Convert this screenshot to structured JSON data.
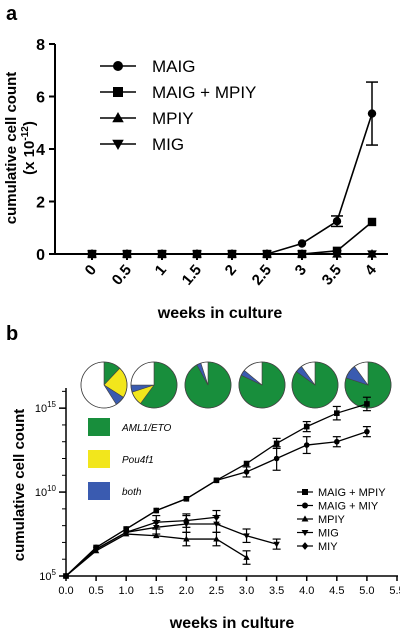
{
  "chart_data": [
    {
      "panel_label": "a",
      "type": "line",
      "xlabel": "weeks in culture",
      "ylabel_line1": "cumulative cell count",
      "ylabel_line2_prefix": "(x 10",
      "ylabel_line2_exp": "-12",
      "ylabel_line2_suffix": ")",
      "categories": [
        "0",
        "0.5",
        "1",
        "1.5",
        "2",
        "2.5",
        "3",
        "3.5",
        "4"
      ],
      "ylim": [
        0,
        8
      ],
      "yticks": [
        0,
        2,
        4,
        6,
        8
      ],
      "legend_position": "top-left",
      "series": [
        {
          "name": "MAIG",
          "marker": "circle",
          "values": [
            0,
            0,
            0,
            0,
            0,
            0,
            0.4,
            1.25,
            5.35
          ],
          "error": [
            0,
            0,
            0,
            0,
            0,
            0,
            0,
            0.2,
            1.2
          ]
        },
        {
          "name": "MAIG + MPIY",
          "marker": "square",
          "values": [
            0,
            0,
            0,
            0,
            0,
            0,
            0,
            0.12,
            1.22
          ],
          "error": [
            0,
            0,
            0,
            0,
            0,
            0,
            0,
            0,
            0
          ]
        },
        {
          "name": "MPIY",
          "marker": "triangle-up",
          "values": [
            0,
            0,
            0,
            0,
            0,
            0,
            0,
            0,
            0
          ],
          "error": [
            0,
            0,
            0,
            0,
            0,
            0,
            0,
            0,
            0
          ]
        },
        {
          "name": "MIG",
          "marker": "triangle-down",
          "values": [
            0,
            0,
            0,
            0,
            0,
            0,
            0,
            0,
            0
          ],
          "error": [
            0,
            0,
            0,
            0,
            0,
            0,
            0,
            0,
            0
          ]
        }
      ]
    },
    {
      "panel_label": "b",
      "type": "line",
      "xlabel": "weeks in culture",
      "ylabel": "cumulative cell count",
      "yscale": "log",
      "xlim": [
        0,
        5.5
      ],
      "xticks": [
        "0.0",
        "0.5",
        "1.0",
        "1.5",
        "2.0",
        "2.5",
        "3.0",
        "3.5",
        "4.0",
        "4.5",
        "5.0",
        "5.5"
      ],
      "ylim_log10": [
        5,
        16.2
      ],
      "yticks": [
        {
          "base": "10",
          "exp": "5",
          "log10": 5
        },
        {
          "base": "10",
          "exp": "10",
          "log10": 10
        },
        {
          "base": "10",
          "exp": "15",
          "log10": 15
        }
      ],
      "legend_position": "bottom-right",
      "series": [
        {
          "name": "MAIG + MPIY",
          "marker": "square",
          "x": [
            0,
            0.5,
            1.0,
            1.5,
            2.0,
            2.5,
            3.0,
            3.5,
            4.0,
            4.5,
            5.0
          ],
          "log10": [
            5.0,
            6.7,
            7.8,
            8.9,
            9.6,
            10.7,
            11.7,
            12.9,
            13.9,
            14.7,
            15.25
          ],
          "log10_error": [
            0,
            0,
            0,
            0,
            0,
            0,
            0,
            0.3,
            0.3,
            0.4,
            0.4
          ]
        },
        {
          "name": "MAIG + MIY",
          "marker": "circle",
          "x": [
            0,
            0.5,
            1.0,
            1.5,
            2.0,
            2.5,
            3.0,
            3.5,
            4.0,
            4.5,
            5.0
          ],
          "log10": [
            5.0,
            6.7,
            7.8,
            8.9,
            9.6,
            10.7,
            11.2,
            12.0,
            12.8,
            13.0,
            13.6
          ],
          "log10_error": [
            0,
            0,
            0,
            0,
            0,
            0,
            0.3,
            0.7,
            0.5,
            0.3,
            0.3
          ]
        },
        {
          "name": "MPIY",
          "marker": "triangle-up",
          "x": [
            0,
            0.5,
            1.0,
            1.5,
            2.0,
            2.5,
            3.0
          ],
          "log10": [
            5.0,
            6.5,
            7.5,
            7.4,
            7.2,
            7.2,
            6.1
          ],
          "log10_error": [
            0,
            0,
            0,
            0,
            0.4,
            0.4,
            0.4
          ]
        },
        {
          "name": "MIG",
          "marker": "triangle-down",
          "x": [
            0,
            0.5,
            1.0,
            1.5,
            2.0,
            2.5,
            3.0,
            3.5
          ],
          "log10": [
            5.0,
            6.6,
            7.6,
            7.9,
            8.1,
            8.1,
            7.4,
            6.9
          ],
          "log10_error": [
            0,
            0,
            0,
            0.4,
            0.5,
            0.5,
            0.4,
            0.3
          ]
        },
        {
          "name": "MIY",
          "marker": "diamond",
          "x": [
            0,
            0.5,
            1.0,
            1.5,
            2.0,
            2.5
          ],
          "log10": [
            5.0,
            6.6,
            7.6,
            8.2,
            8.3,
            8.5
          ],
          "log10_error": [
            0,
            0,
            0,
            0.4,
            0.4,
            0.4
          ]
        }
      ],
      "pie_legend": [
        {
          "label": "AML1/ETO",
          "color": "#188e3c"
        },
        {
          "label": "Pou4f1",
          "color": "#f2e61c"
        },
        {
          "label": "both",
          "color": "#3a5bb0"
        }
      ],
      "pies": [
        {
          "week": 1.0,
          "AML1/ETO": 0.12,
          "Pou4f1": 0.22,
          "both": 0.07,
          "none": 0.59
        },
        {
          "week": 1.5,
          "AML1/ETO": 0.6,
          "Pou4f1": 0.1,
          "both": 0.05,
          "none": 0.25
        },
        {
          "week": 2.0,
          "AML1/ETO": 0.92,
          "Pou4f1": 0.0,
          "both": 0.03,
          "none": 0.05
        },
        {
          "week": 2.5,
          "AML1/ETO": 0.82,
          "Pou4f1": 0.0,
          "both": 0.04,
          "none": 0.14
        },
        {
          "week": 3.0,
          "AML1/ETO": 0.85,
          "Pou4f1": 0.0,
          "both": 0.05,
          "none": 0.1
        },
        {
          "week": 3.5,
          "AML1/ETO": 0.8,
          "Pou4f1": 0.0,
          "both": 0.1,
          "none": 0.1
        },
        {
          "week": 4.0,
          "AML1/ETO": 0.8,
          "Pou4f1": 0.02,
          "both": 0.1,
          "none": 0.08
        }
      ]
    }
  ]
}
